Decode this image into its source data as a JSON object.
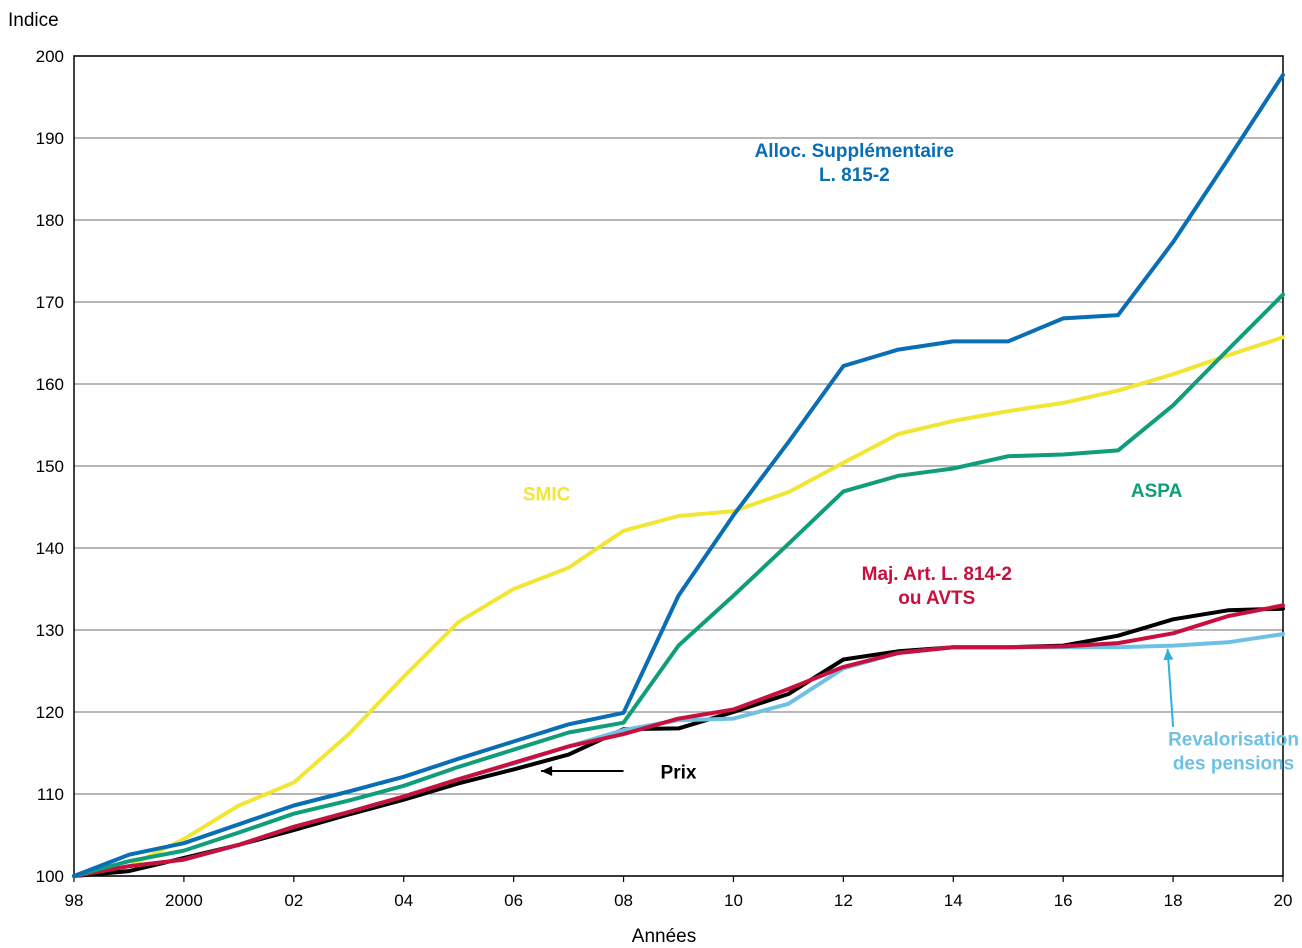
{
  "chart_data": {
    "type": "line",
    "title": "",
    "ylabel": "Indice",
    "xlabel": "Années",
    "ylim": [
      100,
      200
    ],
    "xlim": [
      1998,
      2020
    ],
    "yticks": [
      100,
      110,
      120,
      130,
      140,
      150,
      160,
      170,
      180,
      190,
      200
    ],
    "xticks": [
      {
        "value": 1998,
        "label": "98"
      },
      {
        "value": 2000,
        "label": "2000"
      },
      {
        "value": 2002,
        "label": "02"
      },
      {
        "value": 2004,
        "label": "04"
      },
      {
        "value": 2006,
        "label": "06"
      },
      {
        "value": 2008,
        "label": "08"
      },
      {
        "value": 2010,
        "label": "10"
      },
      {
        "value": 2012,
        "label": "12"
      },
      {
        "value": 2014,
        "label": "14"
      },
      {
        "value": 2016,
        "label": "16"
      },
      {
        "value": 2018,
        "label": "18"
      },
      {
        "value": 2020,
        "label": "20"
      }
    ],
    "grid": "horizontal",
    "x": [
      1998,
      1999,
      2000,
      2001,
      2002,
      2003,
      2004,
      2005,
      2006,
      2007,
      2008,
      2009,
      2010,
      2011,
      2012,
      2013,
      2014,
      2015,
      2016,
      2017,
      2018,
      2019,
      2020
    ],
    "series": [
      {
        "name": "SMIC",
        "color": "#F2E635",
        "width": 4,
        "values": [
          100,
          101.2,
          104.5,
          108.6,
          111.4,
          117.3,
          124.3,
          131.0,
          135.0,
          137.6,
          142.1,
          143.9,
          144.5,
          146.8,
          150.4,
          153.9,
          155.5,
          156.7,
          157.7,
          159.2,
          161.2,
          163.5,
          165.7
        ]
      },
      {
        "name": "Prix",
        "color": "#000000",
        "width": 4,
        "values": [
          100,
          100.6,
          102.2,
          103.8,
          105.6,
          107.5,
          109.3,
          111.3,
          113.0,
          114.8,
          117.9,
          118.0,
          120.0,
          122.2,
          126.4,
          127.4,
          127.9,
          127.9,
          128.1,
          129.3,
          131.3,
          132.4,
          132.6
        ]
      },
      {
        "name": "Revalorisation des pensions",
        "color": "#6EC1E4",
        "width": 4,
        "values": [
          100,
          101.2,
          102.0,
          103.8,
          106.0,
          107.8,
          109.7,
          111.8,
          113.7,
          115.8,
          117.8,
          119.0,
          119.2,
          121.0,
          125.3,
          127.2,
          127.9,
          127.9,
          127.9,
          127.9,
          128.1,
          128.5,
          129.5
        ]
      },
      {
        "name": "Maj. Art. L. 814-2 ou AVTS",
        "color": "#C8103E",
        "width": 4,
        "values": [
          100,
          101.2,
          102.0,
          103.8,
          106.0,
          107.8,
          109.7,
          111.8,
          113.8,
          115.8,
          117.3,
          119.2,
          120.3,
          122.8,
          125.5,
          127.2,
          127.9,
          127.9,
          128.0,
          128.4,
          129.6,
          131.7,
          133.0
        ]
      },
      {
        "name": "ASPA",
        "color": "#0F9D7A",
        "width": 4,
        "values": [
          100,
          101.8,
          103.1,
          105.3,
          107.6,
          109.2,
          111.0,
          113.3,
          115.4,
          117.5,
          118.7,
          128.1,
          134.2,
          140.5,
          146.9,
          148.8,
          149.7,
          151.2,
          151.4,
          151.9,
          157.4,
          164.2,
          170.9
        ]
      },
      {
        "name": "Alloc. Supplémentaire L. 815-2",
        "color": "#0A6EB4",
        "width": 4,
        "values": [
          100,
          102.6,
          104.0,
          106.3,
          108.6,
          110.3,
          112.1,
          114.3,
          116.4,
          118.5,
          119.9,
          134.2,
          144.0,
          152.9,
          162.2,
          164.2,
          165.2,
          165.2,
          168.0,
          168.4,
          177.3,
          187.4,
          197.7
        ]
      }
    ],
    "annotations": [
      {
        "id": "alloc-supp",
        "lines": [
          "Alloc. Supplémentaire",
          "L. 815-2"
        ],
        "color": "#0A6EB4",
        "x": 2012.2,
        "y": 187.7
      },
      {
        "id": "smic",
        "lines": [
          "SMIC"
        ],
        "color": "#F2E635",
        "x": 2006.6,
        "y": 145.8
      },
      {
        "id": "aspa",
        "lines": [
          "ASPA"
        ],
        "color": "#0F9D7A",
        "x": 2017.7,
        "y": 146.2
      },
      {
        "id": "maj",
        "lines": [
          "Maj. Art. L. 814-2",
          "ou AVTS"
        ],
        "color": "#C8103E",
        "x": 2013.7,
        "y": 136.1
      },
      {
        "id": "reval",
        "lines": [
          "Revalorisation",
          "des pensions"
        ],
        "color": "#6EC1E4",
        "x": 2019.1,
        "y": 115.9
      },
      {
        "id": "prix",
        "lines": [
          "Prix"
        ],
        "color": "#000000",
        "x": 2009.0,
        "y": 111.9
      }
    ],
    "arrows": [
      {
        "id": "prix-arrow",
        "color": "#000000",
        "from": [
          2008.0,
          112.8
        ],
        "to": [
          2006.5,
          112.8
        ]
      },
      {
        "id": "reval-arrow",
        "color": "#2BB0E0",
        "from": [
          2018.0,
          118.2
        ],
        "to": [
          2017.9,
          127.7
        ]
      }
    ]
  }
}
